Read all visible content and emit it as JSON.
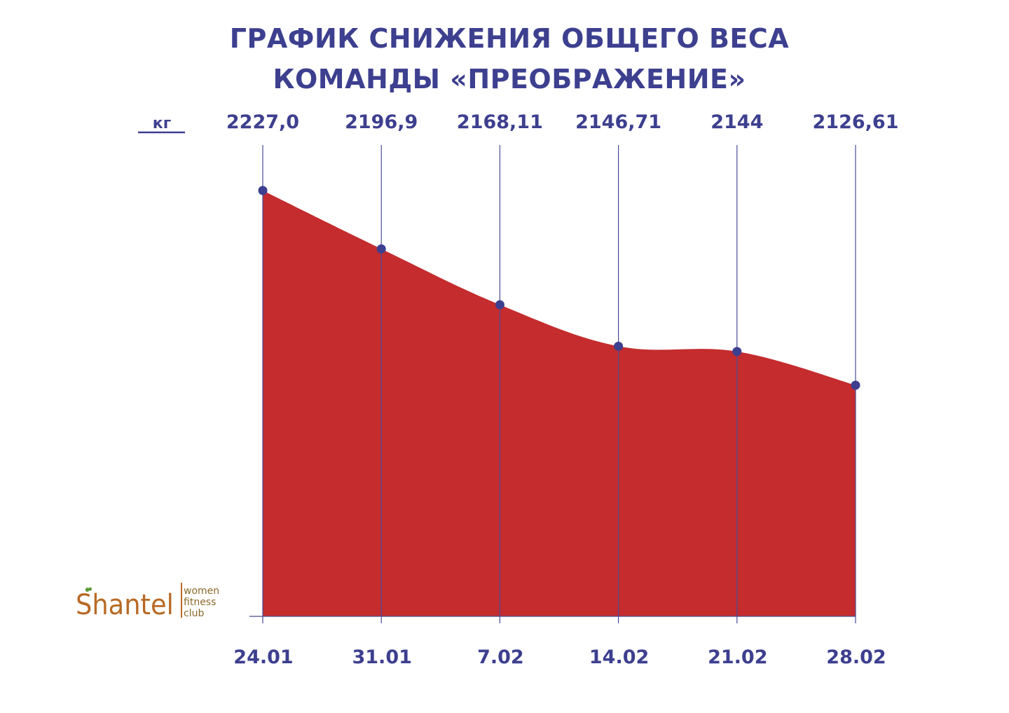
{
  "title_lines": [
    "ГРАФИК СНИЖЕНИЯ ОБЩЕГО ВЕСА",
    "КОМАНДЫ «ПРЕОБРАЖЕНИЕ»"
  ],
  "colors": {
    "text": "#3d3f8f",
    "fill": "#c42c2e",
    "line": "#4a4c96",
    "point": "#3d3f8f",
    "logo": "#b86a25",
    "logo_tag": "#8a6a2a",
    "logo_leaf": "#5a9a3a"
  },
  "logo": {
    "name": "Shantel",
    "tagline": [
      "women",
      "fitness",
      "club"
    ],
    "leaf_icon": "leaf-icon"
  },
  "chart_data": {
    "type": "area",
    "title": "ГРАФИК СНИЖЕНИЯ ОБЩЕГО ВЕСА КОМАНДЫ «ПРЕОБРАЖЕНИЕ»",
    "unit_label": "кг",
    "x": [
      "24.01",
      "31.01",
      "7.02",
      "14.02",
      "21.02",
      "28.02"
    ],
    "values": [
      2227.0,
      2196.9,
      2168.11,
      2146.71,
      2144,
      2126.61
    ],
    "value_labels": [
      "2227,0",
      "2196,9",
      "2168,11",
      "2146,71",
      "2144",
      "2126,61"
    ],
    "smooth": true,
    "grid": false,
    "ylim": [
      2000,
      2250
    ]
  }
}
